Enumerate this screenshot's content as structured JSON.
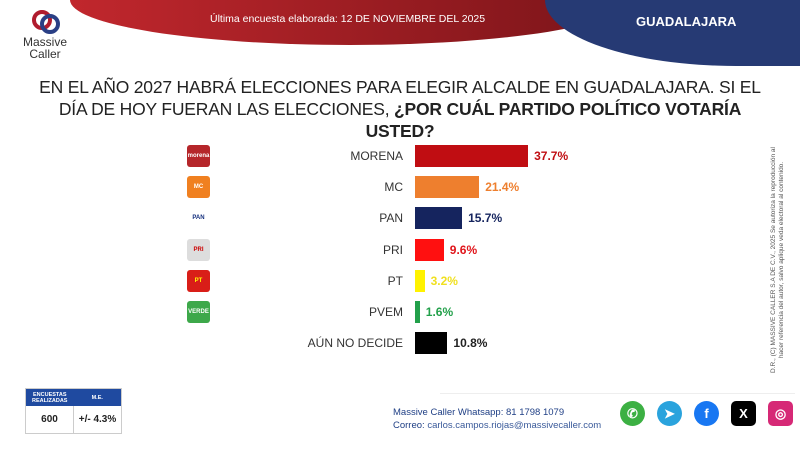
{
  "header": {
    "subtitle": "Última encuesta elaborada: 12 DE NOVIEMBRE DEL 2025",
    "city": "GUADALAJARA",
    "logo_text_1": "Massive",
    "logo_text_2": "Caller"
  },
  "question": {
    "part1": "EN EL AÑO 2027 HABRÁ ELECCIONES PARA ELEGIR ALCALDE EN GUADALAJARA. SI EL DÍA DE HOY FUERAN LAS ELECCIONES, ",
    "part2": "¿POR CUÁL PARTIDO POLÍTICO VOTARÍA USTED?"
  },
  "chart_data": {
    "type": "bar",
    "orientation": "horizontal",
    "categories": [
      "MORENA",
      "MC",
      "PAN",
      "PRI",
      "PT",
      "PVEM",
      "AÚN NO DECIDE"
    ],
    "values": [
      37.7,
      21.4,
      15.7,
      9.6,
      3.2,
      1.6,
      10.8
    ],
    "labels": [
      "37.7%",
      "21.4%",
      "15.7%",
      "9.6%",
      "3.2%",
      "1.6%",
      "10.8%"
    ],
    "colors": [
      "#c00d12",
      "#ee7f2e",
      "#15245e",
      "#ff1010",
      "#fff200",
      "#22a04a",
      "#000000"
    ],
    "label_colors": [
      "#c00d12",
      "#ee7f2e",
      "#15245e",
      "#e0141a",
      "#f0e020",
      "#22a04a",
      "#222222"
    ],
    "logos": [
      "morena",
      "MC",
      "PAN",
      "PRI",
      "PT",
      "VERDE"
    ]
  },
  "side_note": "D.R., (C) MASSIVE CALLER S.A DE C.V., 2025 Se autoriza la reproducción al hacer referencia del autor, salvo aplique veda electoral al contenido.",
  "stats": {
    "h1": "ENCUESTAS REALIZADAS",
    "h2": "M.E.",
    "v1": "600",
    "v2": "+/- 4.3%"
  },
  "contact": {
    "whatsapp": "Massive Caller Whatsapp: 81 1798 1079",
    "email_label": "Correo:",
    "email": "carlos.campos.riojas@massivecaller.com"
  },
  "social": [
    {
      "name": "whatsapp",
      "color": "#3cb043",
      "glyph": "✆"
    },
    {
      "name": "telegram",
      "color": "#2aa3dd",
      "glyph": "➤"
    },
    {
      "name": "facebook",
      "color": "#1877f2",
      "glyph": "f"
    },
    {
      "name": "x",
      "color": "#000000",
      "glyph": "X"
    },
    {
      "name": "instagram",
      "color": "#d62976",
      "glyph": "◎"
    }
  ]
}
